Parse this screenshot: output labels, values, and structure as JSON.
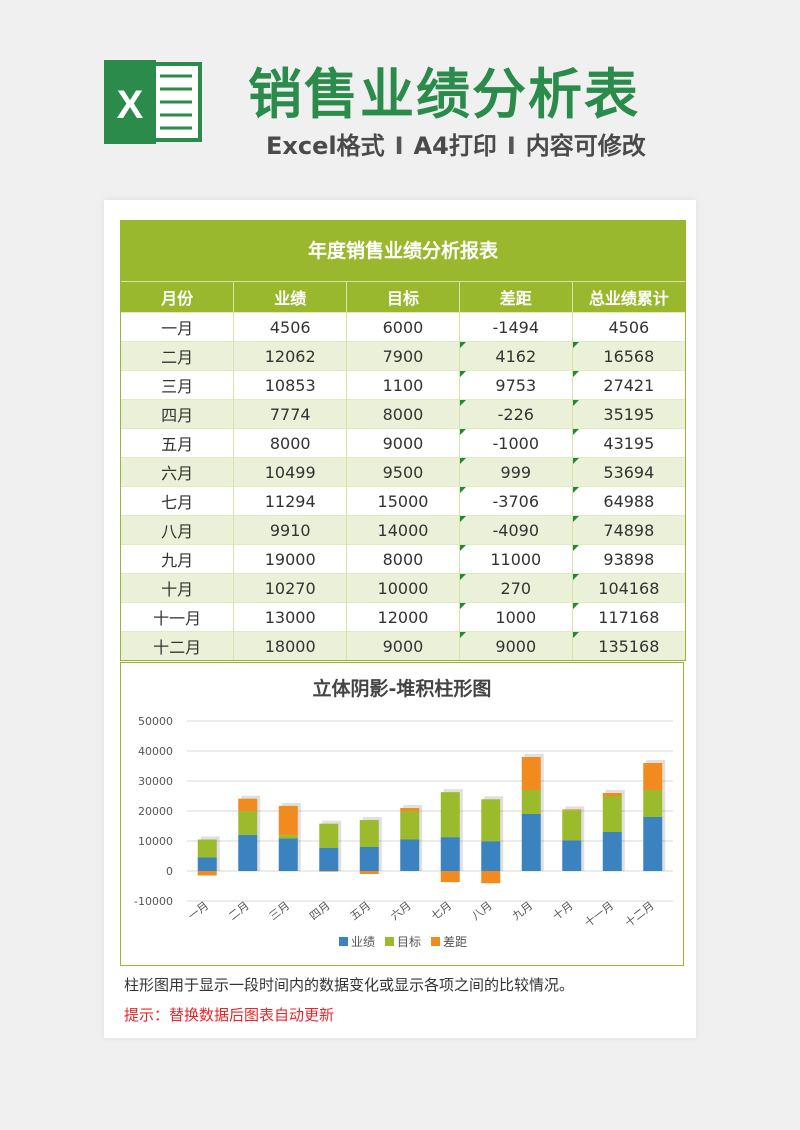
{
  "header": {
    "title": "销售业绩分析表",
    "subtitle_parts": [
      "Excel格式",
      "A4打印",
      "内容可修改"
    ],
    "separator": "I",
    "logo_letter": "X"
  },
  "table": {
    "title": "年度销售业绩分析报表",
    "columns": [
      "月份",
      "业绩",
      "目标",
      "差距",
      "总业绩累计"
    ],
    "rows": [
      [
        "一月",
        "4506",
        "6000",
        "-1494",
        "4506"
      ],
      [
        "二月",
        "12062",
        "7900",
        "4162",
        "16568"
      ],
      [
        "三月",
        "10853",
        "1100",
        "9753",
        "27421"
      ],
      [
        "四月",
        "7774",
        "8000",
        "-226",
        "35195"
      ],
      [
        "五月",
        "8000",
        "9000",
        "-1000",
        "43195"
      ],
      [
        "六月",
        "10499",
        "9500",
        "999",
        "53694"
      ],
      [
        "七月",
        "11294",
        "15000",
        "-3706",
        "64988"
      ],
      [
        "八月",
        "9910",
        "14000",
        "-4090",
        "74898"
      ],
      [
        "九月",
        "19000",
        "8000",
        "11000",
        "93898"
      ],
      [
        "十月",
        "10270",
        "10000",
        "270",
        "104168"
      ],
      [
        "十一月",
        "13000",
        "12000",
        "1000",
        "117168"
      ],
      [
        "十二月",
        "18000",
        "9000",
        "9000",
        "135168"
      ]
    ]
  },
  "chart_data": {
    "type": "bar",
    "stacked": true,
    "title": "立体阴影-堆积柱形图",
    "categories": [
      "一月",
      "二月",
      "三月",
      "四月",
      "五月",
      "六月",
      "七月",
      "八月",
      "九月",
      "十月",
      "十一月",
      "十二月"
    ],
    "series": [
      {
        "name": "业绩",
        "color": "#3a83c0",
        "values": [
          4506,
          12062,
          10853,
          7774,
          8000,
          10499,
          11294,
          9910,
          19000,
          10270,
          13000,
          18000
        ]
      },
      {
        "name": "目标",
        "color": "#9cbb2c",
        "values": [
          6000,
          7900,
          1100,
          8000,
          9000,
          9500,
          15000,
          14000,
          8000,
          10000,
          12000,
          9000
        ]
      },
      {
        "name": "差距",
        "color": "#f18a1f",
        "values": [
          -1494,
          4162,
          9753,
          -226,
          -1000,
          999,
          -3706,
          -4090,
          11000,
          270,
          1000,
          9000
        ]
      }
    ],
    "ylim": [
      -10000,
      50000
    ],
    "yticks": [
      "-10000",
      "0",
      "10000",
      "20000",
      "30000",
      "40000",
      "50000"
    ],
    "grid": true,
    "legend": "bottom"
  },
  "notes": {
    "description": "柱形图用于显示一段时间内的数据变化或显示各项之间的比较情况。",
    "hint": "提示：替换数据后图表自动更新"
  }
}
